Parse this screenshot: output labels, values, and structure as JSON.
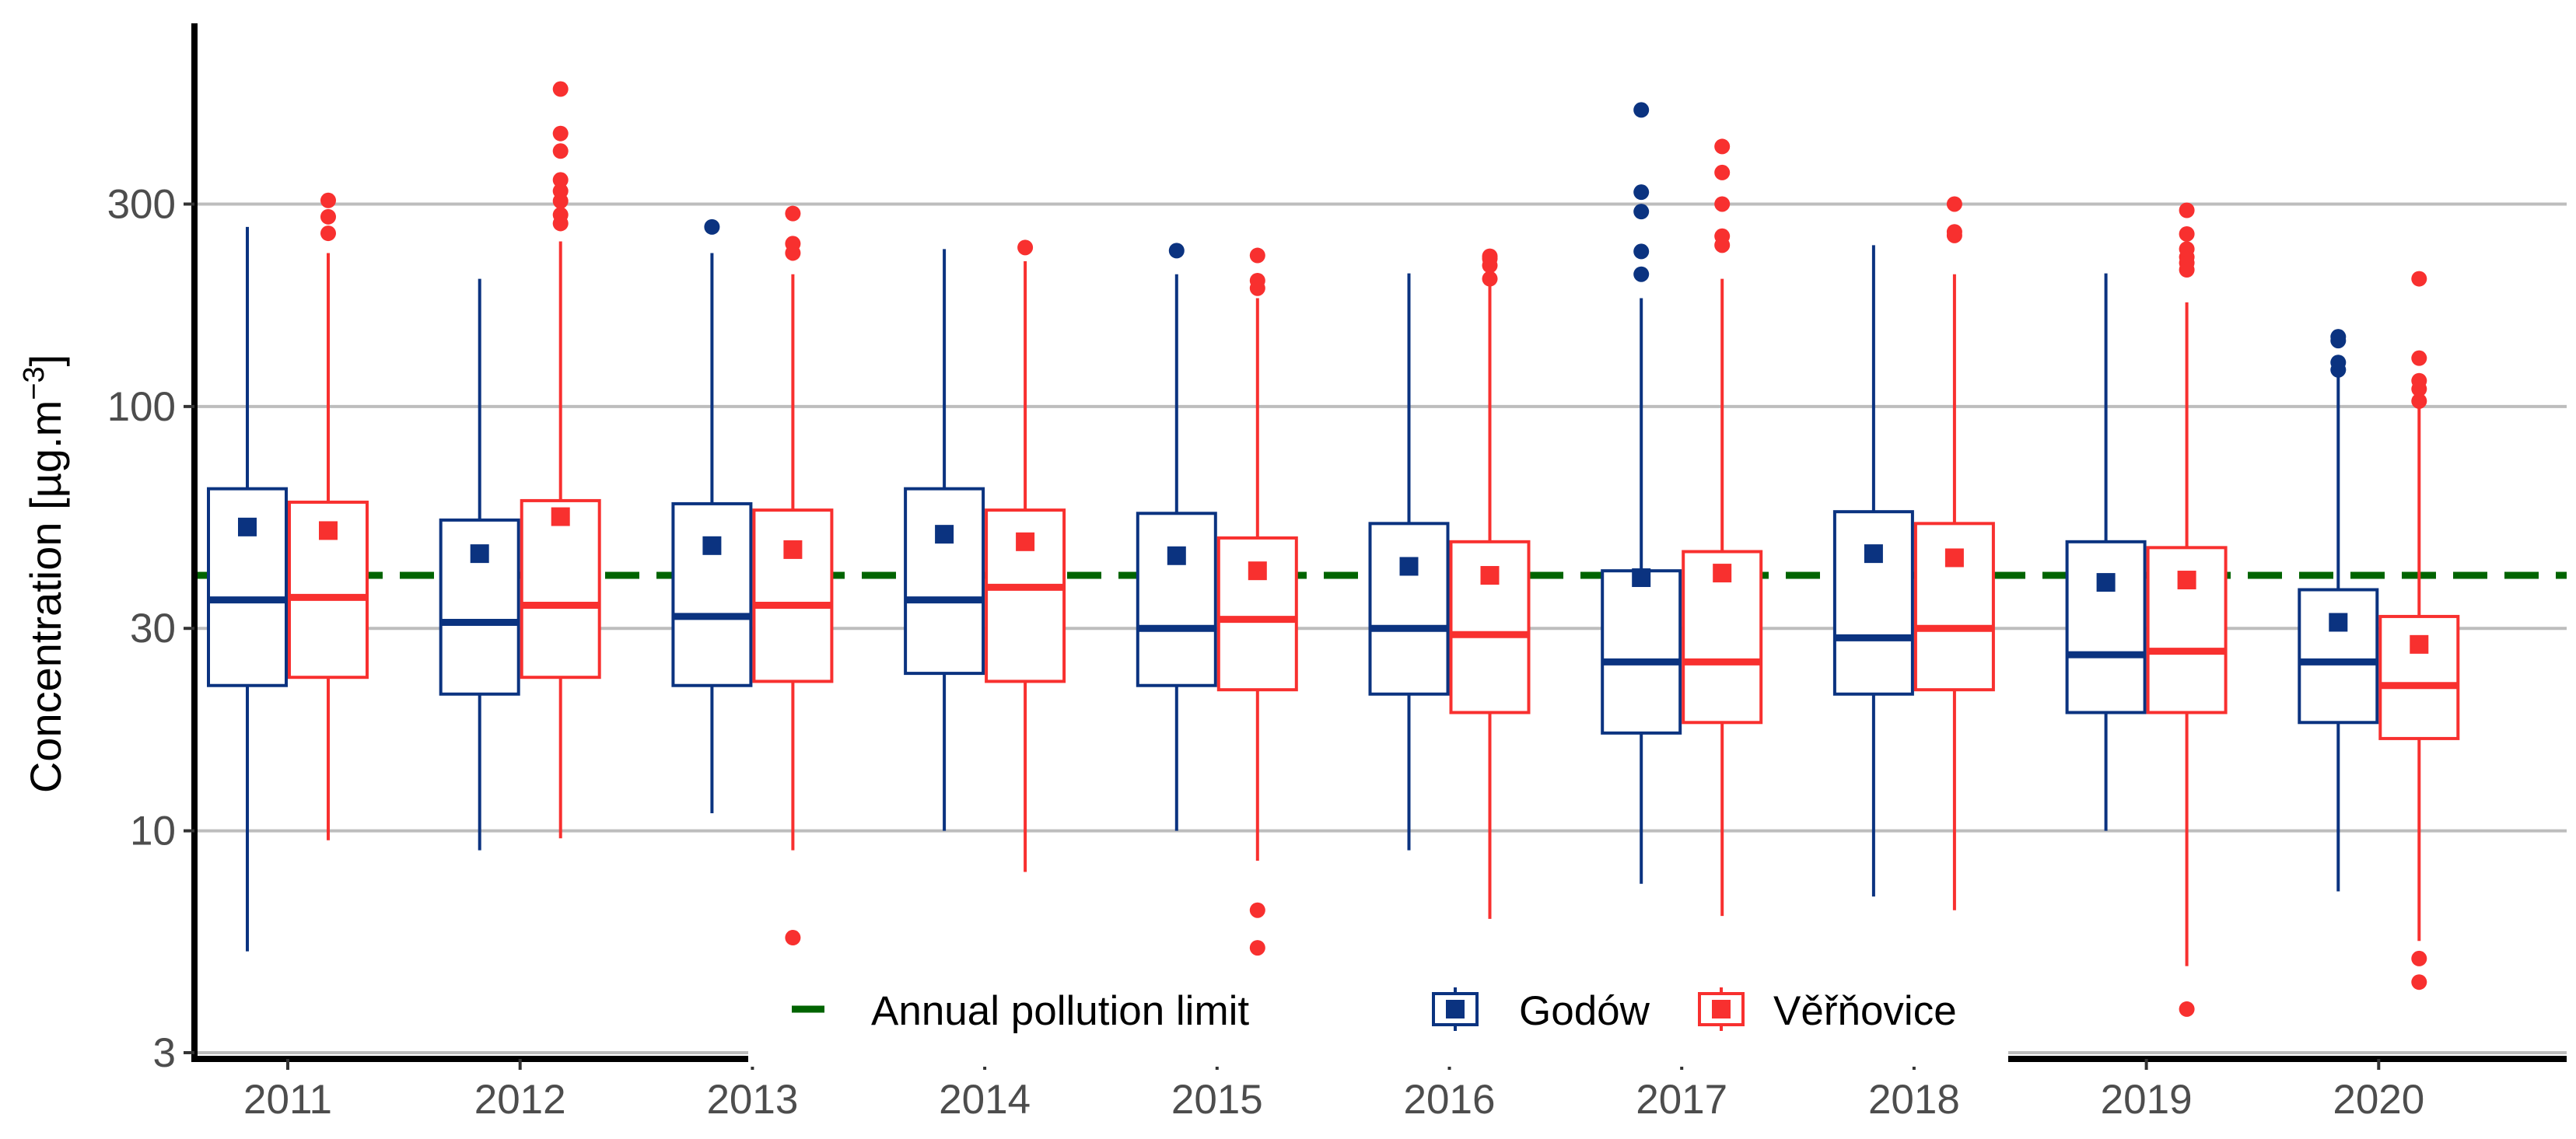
{
  "chart_data": {
    "type": "boxplot",
    "title": "",
    "xlabel": "",
    "ylabel": "Concentration [µg.m",
    "ylabel_superscript": "−3",
    "ylabel_close": "]",
    "yscale": "log10",
    "ylim": [
      2.9,
      800
    ],
    "yticks": [
      3,
      10,
      30,
      100,
      300
    ],
    "ytick_labels": [
      "3",
      "10",
      "30",
      "100",
      "300"
    ],
    "grid": true,
    "legend_position": "bottom-center inside",
    "categories": [
      "2011",
      "2012",
      "2013",
      "2014",
      "2015",
      "2016",
      "2017",
      "2018",
      "2019",
      "2020"
    ],
    "reference_line": {
      "name": "Annual pollution limit",
      "value": 40,
      "color": "#006400",
      "style": "dashed"
    },
    "series": [
      {
        "name": "Godów",
        "color": "#0b3380",
        "boxes": [
          {
            "q1": 22,
            "median": 35,
            "q3": 64,
            "whisker_low": 5.2,
            "whisker_high": 265,
            "mean": 52,
            "outliers": []
          },
          {
            "q1": 21,
            "median": 31,
            "q3": 54,
            "whisker_low": 9,
            "whisker_high": 200,
            "mean": 45,
            "outliers": []
          },
          {
            "q1": 22,
            "median": 32,
            "q3": 59,
            "whisker_low": 11,
            "whisker_high": 230,
            "mean": 47,
            "outliers": [
              265
            ]
          },
          {
            "q1": 23.5,
            "median": 35,
            "q3": 64,
            "whisker_low": 10,
            "whisker_high": 235,
            "mean": 50,
            "outliers": []
          },
          {
            "q1": 22,
            "median": 30,
            "q3": 56,
            "whisker_low": 10,
            "whisker_high": 205,
            "mean": 44.5,
            "outliers": [
              233
            ]
          },
          {
            "q1": 21,
            "median": 30,
            "q3": 53,
            "whisker_low": 9,
            "whisker_high": 206,
            "mean": 42,
            "outliers": []
          },
          {
            "q1": 17,
            "median": 25,
            "q3": 41,
            "whisker_low": 7.5,
            "whisker_high": 180,
            "mean": 39.5,
            "outliers": [
              205,
              232,
              288,
              320,
              500
            ]
          },
          {
            "q1": 21,
            "median": 28.5,
            "q3": 56.5,
            "whisker_low": 7,
            "whisker_high": 240,
            "mean": 45,
            "outliers": []
          },
          {
            "q1": 19,
            "median": 26,
            "q3": 48,
            "whisker_low": 10,
            "whisker_high": 206,
            "mean": 38.5,
            "outliers": []
          },
          {
            "q1": 18,
            "median": 25,
            "q3": 37,
            "whisker_low": 7.2,
            "whisker_high": 120,
            "mean": 31,
            "outliers": [
              122,
              127,
              143,
              146
            ]
          }
        ]
      },
      {
        "name": "Věřňovice",
        "color": "#f8302f",
        "boxes": [
          {
            "q1": 23,
            "median": 35.5,
            "q3": 59.5,
            "whisker_low": 9.5,
            "whisker_high": 230,
            "mean": 51,
            "outliers": [
              256,
              280,
              306
            ]
          },
          {
            "q1": 23,
            "median": 34,
            "q3": 60,
            "whisker_low": 9.6,
            "whisker_high": 245,
            "mean": 55,
            "outliers": [
              270,
              283,
              305,
              322,
              342,
              400,
              440,
              560
            ]
          },
          {
            "q1": 22.5,
            "median": 34,
            "q3": 57,
            "whisker_low": 9,
            "whisker_high": 205,
            "mean": 46,
            "outliers": [
              5.6,
              230,
              242,
              285
            ]
          },
          {
            "q1": 22.5,
            "median": 37.5,
            "q3": 57,
            "whisker_low": 8,
            "whisker_high": 220,
            "mean": 48,
            "outliers": [
              237
            ]
          },
          {
            "q1": 21.5,
            "median": 31.5,
            "q3": 49,
            "whisker_low": 8.5,
            "whisker_high": 180,
            "mean": 41,
            "outliers": [
              5.3,
              6.5,
              190,
              198,
              227
            ]
          },
          {
            "q1": 19,
            "median": 29,
            "q3": 48,
            "whisker_low": 6.2,
            "whisker_high": 198,
            "mean": 40,
            "outliers": [
              200,
              215,
              223,
              226
            ]
          },
          {
            "q1": 18,
            "median": 25,
            "q3": 45.5,
            "whisker_low": 6.3,
            "whisker_high": 200,
            "mean": 40.5,
            "outliers": [
              240,
              252,
              300,
              356,
              410
            ]
          },
          {
            "q1": 21.5,
            "median": 30,
            "q3": 53,
            "whisker_low": 6.5,
            "whisker_high": 205,
            "mean": 44,
            "outliers": [
              253,
              258,
              300
            ]
          },
          {
            "q1": 19,
            "median": 26.5,
            "q3": 46.5,
            "whisker_low": 4.8,
            "whisker_high": 176,
            "mean": 39,
            "outliers": [
              3.8,
              210,
              218,
              225,
              235,
              255,
              290
            ]
          },
          {
            "q1": 16.5,
            "median": 22,
            "q3": 32,
            "whisker_low": 5.5,
            "whisker_high": 100,
            "mean": 27.5,
            "outliers": [
              4.4,
              5,
              103,
              110,
              115,
              130,
              200
            ]
          }
        ]
      }
    ]
  }
}
